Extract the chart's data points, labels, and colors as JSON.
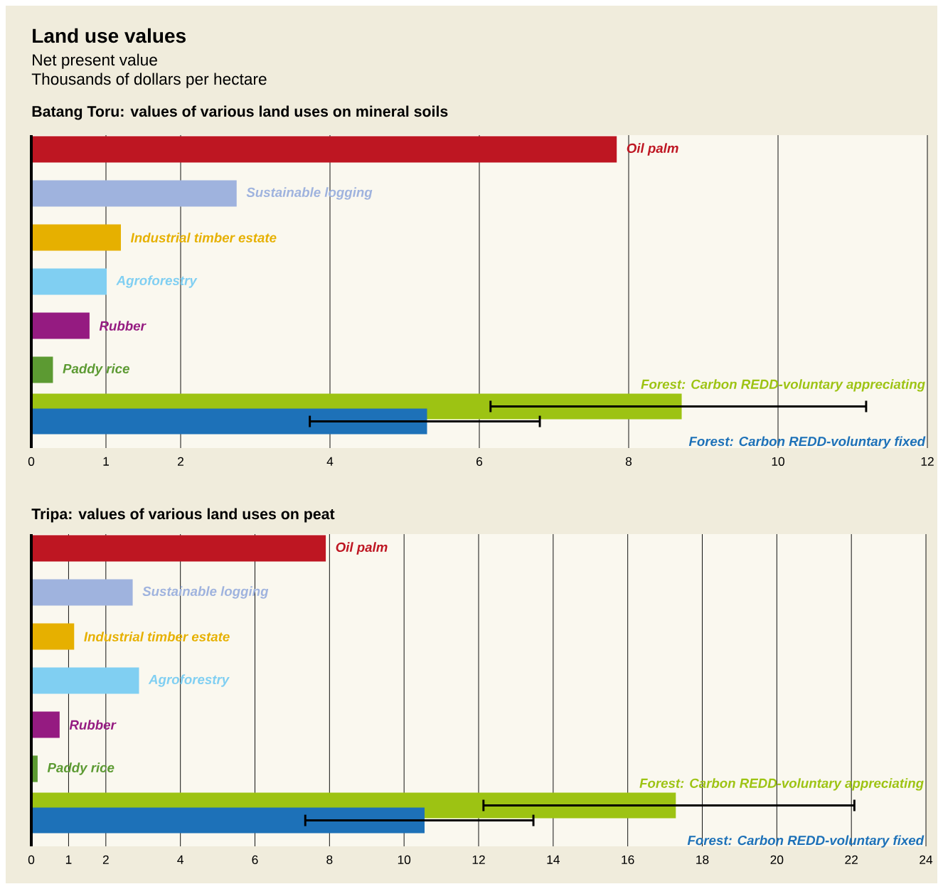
{
  "chart_data": [
    {
      "type": "other",
      "title": "Land use values",
      "subtitle": "Net present value",
      "annotations": [
        "Thousands of dollars per hectare"
      ]
    },
    {
      "type": "bar",
      "orientation": "horizontal",
      "title": "Batang Toru: values of various land uses on mineral soils",
      "categories": [
        "Oil palm",
        "Sustainable logging",
        "Industrial timber estate",
        "Agroforestry",
        "Rubber",
        "Paddy rice",
        null
      ],
      "xlim": [
        0,
        12
      ],
      "xticks": [
        0,
        1,
        2,
        4,
        6,
        8,
        10,
        12
      ],
      "grid": "x",
      "series": [
        {
          "colors": [
            "#be1622",
            "#9fb3de",
            "#e6b000",
            "#80cff2",
            "#951b81",
            "#5c9a32",
            null
          ],
          "values": [
            7.84,
            2.75,
            1.2,
            1.01,
            0.78,
            0.29,
            null
          ]
        },
        {
          "name": "Forest: Carbon REDD-voluntary appreciating",
          "color": "#9dc313",
          "values": [
            null,
            null,
            null,
            null,
            null,
            null,
            8.71
          ],
          "errors": [
            null,
            null,
            null,
            null,
            null,
            null,
            [
              6.15,
              11.18
            ]
          ]
        },
        {
          "name": "Forest: Carbon REDD-voluntary fixed",
          "color": "#1d71b8",
          "values": [
            null,
            null,
            null,
            null,
            null,
            null,
            5.3
          ],
          "errors": [
            null,
            null,
            null,
            null,
            null,
            null,
            [
              3.73,
              6.81
            ]
          ]
        }
      ]
    },
    {
      "type": "bar",
      "orientation": "horizontal",
      "title": "Tripa: values of various land uses on peat",
      "categories": [
        "Oil palm",
        "Sustainable logging",
        "Industrial timber estate",
        "Agroforestry",
        "Rubber",
        "Paddy rice",
        null
      ],
      "xlim": [
        0,
        24
      ],
      "xticks": [
        0,
        1,
        2,
        4,
        6,
        8,
        10,
        12,
        14,
        16,
        18,
        20,
        22,
        24
      ],
      "grid": "x",
      "series": [
        {
          "colors": [
            "#be1622",
            "#9fb3de",
            "#e6b000",
            "#80cff2",
            "#951b81",
            "#5c9a32",
            null
          ],
          "values": [
            7.9,
            2.72,
            1.15,
            2.89,
            0.76,
            0.17,
            null
          ]
        },
        {
          "name": "Forest: Carbon REDD-voluntary appreciating",
          "color": "#9dc313",
          "values": [
            null,
            null,
            null,
            null,
            null,
            null,
            17.29
          ],
          "errors": [
            null,
            null,
            null,
            null,
            null,
            null,
            [
              12.13,
              22.08
            ]
          ]
        },
        {
          "name": "Forest: Carbon REDD-voluntary fixed",
          "color": "#1d71b8",
          "values": [
            null,
            null,
            null,
            null,
            null,
            null,
            10.55
          ],
          "errors": [
            null,
            null,
            null,
            null,
            null,
            null,
            [
              7.35,
              13.47
            ]
          ]
        }
      ]
    }
  ]
}
